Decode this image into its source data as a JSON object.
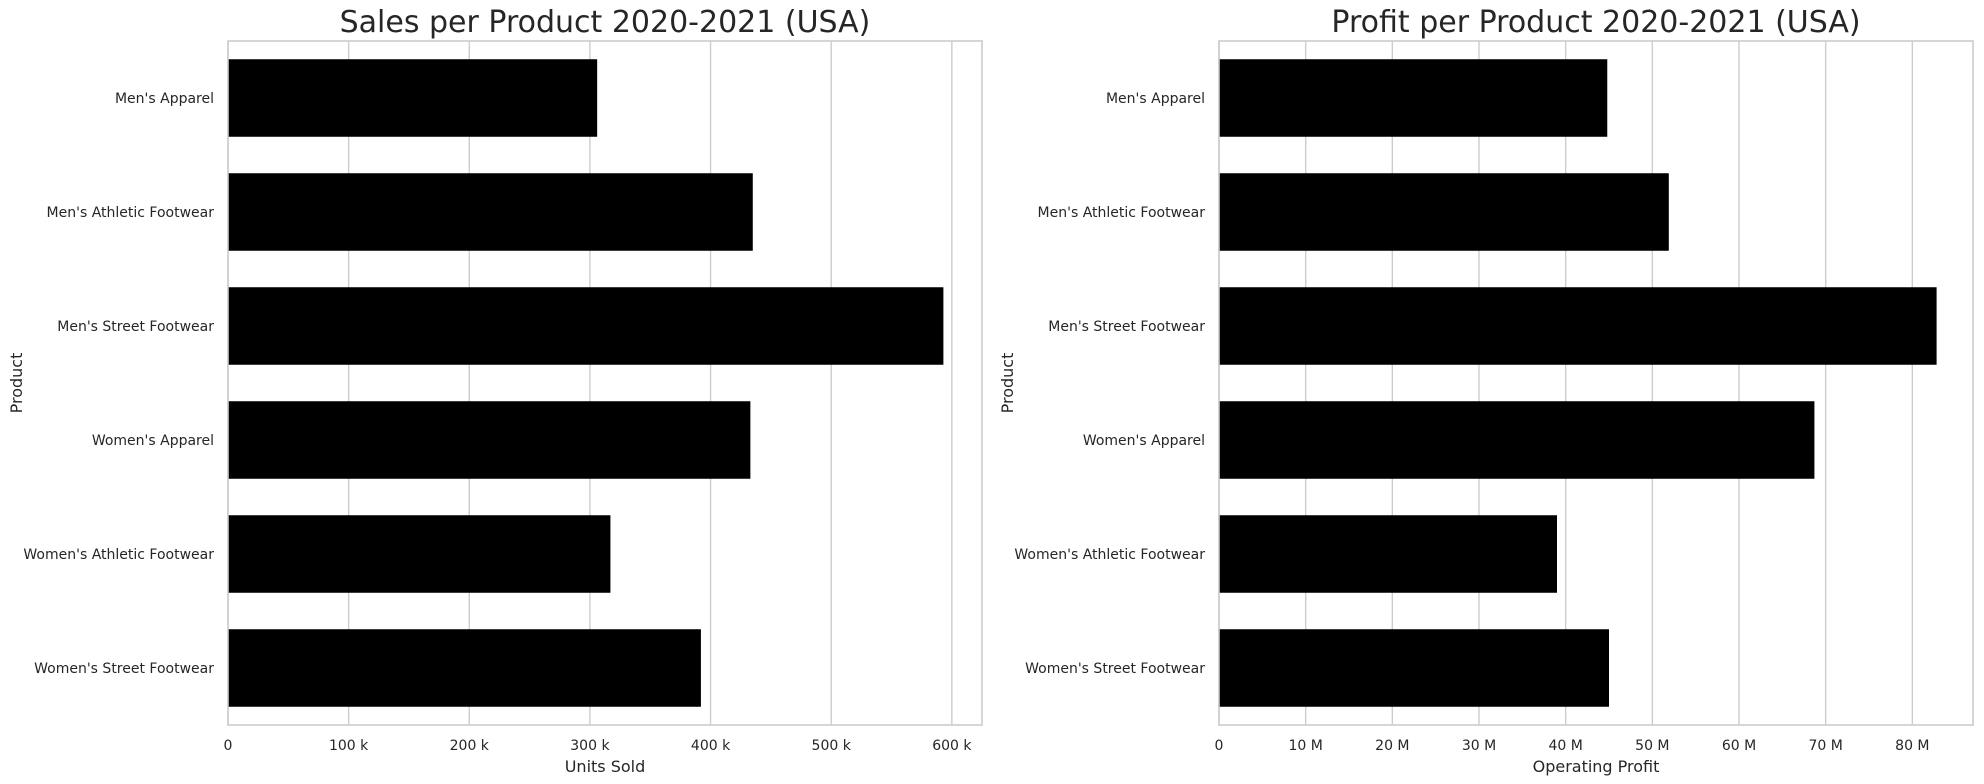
{
  "chart_data": [
    {
      "type": "bar",
      "orientation": "horizontal",
      "title": "Sales per Product 2020-2021 (USA)",
      "xlabel": "Units Sold",
      "ylabel": "Product",
      "categories": [
        "Men's Apparel",
        "Men's Athletic Footwear",
        "Men's Street Footwear",
        "Women's Apparel",
        "Women's Athletic Footwear",
        "Women's Street Footwear"
      ],
      "values": [
        306000,
        435000,
        593000,
        433000,
        317000,
        392000
      ],
      "xlim": [
        0,
        625000
      ],
      "xticks": [
        0,
        100000,
        200000,
        300000,
        400000,
        500000,
        600000
      ],
      "xtick_labels": [
        "0",
        "100 k",
        "200 k",
        "300 k",
        "400 k",
        "500 k",
        "600 k"
      ],
      "grid": "vertical",
      "bar_color": "#000000"
    },
    {
      "type": "bar",
      "orientation": "horizontal",
      "title": "Profit per Product 2020-2021 (USA)",
      "xlabel": "Operating Profit",
      "ylabel": "Product",
      "categories": [
        "Men's Apparel",
        "Men's Athletic Footwear",
        "Men's Street Footwear",
        "Women's Apparel",
        "Women's Athletic Footwear",
        "Women's Street Footwear"
      ],
      "values": [
        44800000,
        51900000,
        82800000,
        68700000,
        39000000,
        45000000
      ],
      "xlim": [
        0,
        87000000
      ],
      "xticks": [
        0,
        10000000,
        20000000,
        30000000,
        40000000,
        50000000,
        60000000,
        70000000,
        80000000
      ],
      "xtick_labels": [
        "0",
        "10 M",
        "20 M",
        "30 M",
        "40 M",
        "50 M",
        "60 M",
        "70 M",
        "80 M"
      ],
      "grid": "vertical",
      "bar_color": "#000000"
    }
  ]
}
